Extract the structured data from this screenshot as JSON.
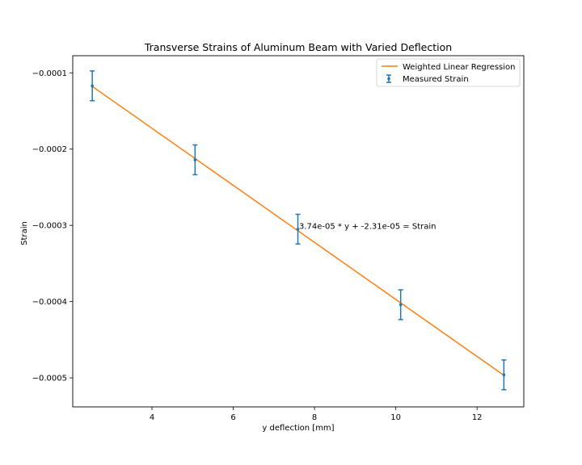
{
  "chart_data": {
    "type": "scatter",
    "title": "Transverse Strains of Aluminum Beam with Varied Deflection",
    "xlabel": "y deflection [mm]",
    "ylabel": "Strain",
    "xlim": [
      2.05,
      13.15
    ],
    "ylim": [
      -0.000538,
      -7.75e-05
    ],
    "xticks": [
      4,
      6,
      8,
      10,
      12
    ],
    "xtick_labels": [
      "4",
      "6",
      "8",
      "10",
      "12"
    ],
    "yticks": [
      -0.0001,
      -0.0002,
      -0.0003,
      -0.0004,
      -0.0005
    ],
    "ytick_labels": [
      "−0.0001",
      "−0.0002",
      "−0.0003",
      "−0.0004",
      "−0.0005"
    ],
    "grid": false,
    "legend_position": "top-right",
    "series": [
      {
        "name": "Weighted Linear Regression",
        "kind": "line",
        "color": "#ff7f0e",
        "slope": -3.74e-05,
        "intercept": -2.31e-05,
        "x": [
          2.53,
          12.66
        ]
      },
      {
        "name": "Measured Strain",
        "kind": "errorbar",
        "color": "#1f77b4",
        "x": [
          2.53,
          5.06,
          7.59,
          10.12,
          12.66
        ],
        "y": [
          -0.000117,
          -0.000214,
          -0.000305,
          -0.000404,
          -0.000496
        ],
        "yerr": [
          1.95e-05,
          1.95e-05,
          1.95e-05,
          1.95e-05,
          1.95e-05
        ]
      }
    ],
    "annotations": [
      {
        "text": "3.74e-05 * y + -2.31e-05 = Strain",
        "x": 7.62,
        "y": -0.000301
      }
    ]
  }
}
